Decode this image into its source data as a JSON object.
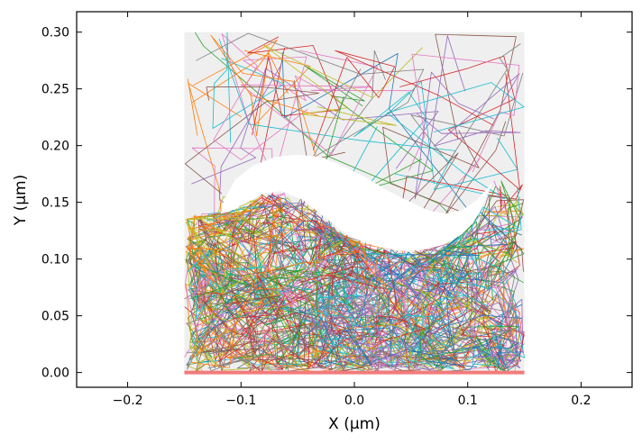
{
  "chart_data": {
    "type": "line",
    "title": "",
    "xlabel": "X (µm)",
    "ylabel": "Y (µm)",
    "xlim": [
      -0.245,
      0.245
    ],
    "ylim": [
      -0.013,
      0.318
    ],
    "xticks": [
      -0.2,
      -0.1,
      0.0,
      0.1,
      0.2
    ],
    "xtick_labels": [
      "−0.2",
      "−0.1",
      "0.0",
      "0.1",
      "0.2"
    ],
    "yticks": [
      0.0,
      0.05,
      0.1,
      0.15,
      0.2,
      0.25,
      0.3
    ],
    "ytick_labels": [
      "0.00",
      "0.05",
      "0.10",
      "0.15",
      "0.20",
      "0.25",
      "0.30"
    ],
    "grid": false,
    "legend": "none",
    "domain_box": {
      "x": [
        -0.15,
        0.15
      ],
      "y": [
        0.0,
        0.3
      ]
    },
    "gap_lower_boundary": [
      [
        -0.118,
        0.14
      ],
      [
        -0.11,
        0.142
      ],
      [
        -0.095,
        0.15
      ],
      [
        -0.08,
        0.158
      ],
      [
        -0.065,
        0.16
      ],
      [
        -0.045,
        0.152
      ],
      [
        -0.03,
        0.14
      ],
      [
        -0.015,
        0.128
      ],
      [
        0.0,
        0.118
      ],
      [
        0.02,
        0.111
      ],
      [
        0.04,
        0.107
      ],
      [
        0.06,
        0.108
      ],
      [
        0.08,
        0.113
      ],
      [
        0.095,
        0.122
      ],
      [
        0.105,
        0.132
      ],
      [
        0.112,
        0.145
      ],
      [
        0.118,
        0.158
      ],
      [
        0.122,
        0.168
      ]
    ],
    "gap_upper_boundary": [
      [
        -0.118,
        0.14
      ],
      [
        -0.115,
        0.152
      ],
      [
        -0.105,
        0.17
      ],
      [
        -0.09,
        0.182
      ],
      [
        -0.07,
        0.19
      ],
      [
        -0.05,
        0.192
      ],
      [
        -0.03,
        0.19
      ],
      [
        -0.01,
        0.182
      ],
      [
        0.01,
        0.172
      ],
      [
        0.03,
        0.16
      ],
      [
        0.05,
        0.15
      ],
      [
        0.065,
        0.143
      ],
      [
        0.08,
        0.14
      ],
      [
        0.095,
        0.143
      ],
      [
        0.108,
        0.152
      ],
      [
        0.118,
        0.163
      ],
      [
        0.122,
        0.168
      ]
    ],
    "series_colors": [
      "#1f77b4",
      "#ff7f0e",
      "#2ca02c",
      "#d62728",
      "#9467bd",
      "#8c564b",
      "#e377c2",
      "#7f7f7f",
      "#bcbd22",
      "#17becf"
    ],
    "background_fill_color": "#efefef",
    "baseline_color": "#f27b7b"
  }
}
